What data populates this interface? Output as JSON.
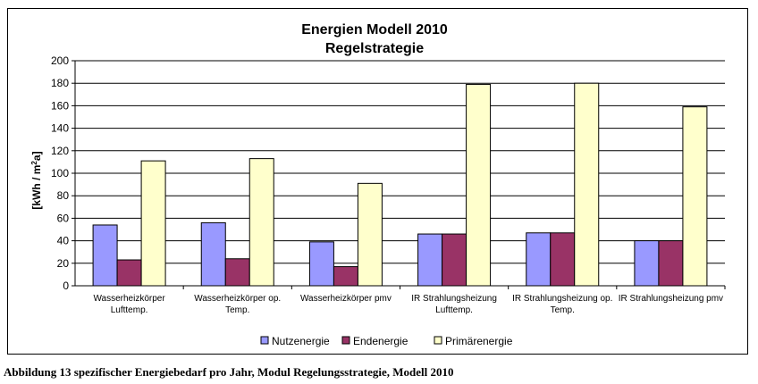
{
  "caption": "Abbildung 13 spezifischer Energiebedarf pro Jahr, Modul Regelungsstrategie, Modell 2010",
  "chart_data": {
    "type": "bar",
    "title": "Energien Modell 2010",
    "subtitle": "Regelstrategie",
    "ylabel": "[kWh / m2a]",
    "xlabel": "",
    "ylim": [
      0,
      200
    ],
    "yticks": [
      0,
      20,
      40,
      60,
      80,
      100,
      120,
      140,
      160,
      180,
      200
    ],
    "grid": true,
    "legend_position": "bottom",
    "categories": [
      [
        "Wasserheizkörper",
        "Lufttemp."
      ],
      [
        "Wasserheizkörper op.",
        "Temp."
      ],
      [
        "Wasserheizkörper pmv"
      ],
      [
        "IR Strahlungsheizung",
        "Lufttemp."
      ],
      [
        "IR Strahlungsheizung op.",
        "Temp."
      ],
      [
        "IR Strahlungsheizung pmv"
      ]
    ],
    "series": [
      {
        "name": "Nutzenergie",
        "color": "#9999ff",
        "values": [
          54,
          56,
          39,
          46,
          47,
          40
        ]
      },
      {
        "name": "Endenergie",
        "color": "#993366",
        "values": [
          23,
          24,
          17,
          46,
          47,
          40
        ]
      },
      {
        "name": "Primärenergie",
        "color": "#ffffcc",
        "values": [
          111,
          113,
          91,
          179,
          180,
          159
        ]
      }
    ]
  }
}
